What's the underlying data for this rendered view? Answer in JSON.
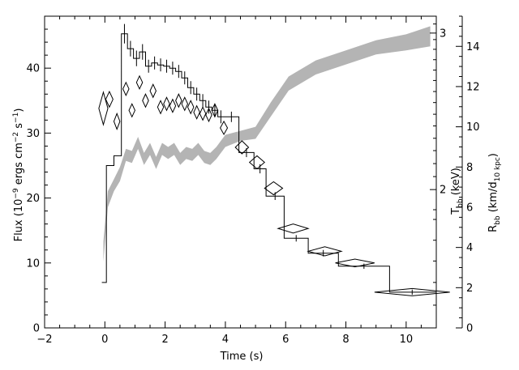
{
  "chart_data": {
    "type": "line",
    "xlabel": "Time (s)",
    "x_ticks": [
      -2,
      0,
      2,
      4,
      6,
      8,
      10
    ],
    "xlim": [
      -2,
      11
    ],
    "ylabel_left": "Flux (10⁻⁹ ergs cm⁻² s⁻¹)",
    "ylim_left": [
      0,
      48
    ],
    "y_ticks_left": [
      0,
      10,
      20,
      30,
      40
    ],
    "ylabel_right_inner": "T_bb (keV)",
    "y_ticks_right_inner": [
      {
        "label": "2",
        "flux": 21.3
      },
      {
        "label": "3",
        "flux": 45.4
      }
    ],
    "ylabel_right_outer": "R_bb (km/d_10 kpc)",
    "ylim_right_outer": [
      0,
      15.5
    ],
    "y_ticks_right_outer": [
      0,
      2,
      4,
      6,
      8,
      10,
      12,
      14
    ],
    "series": [
      {
        "style": "histogram",
        "bins": [
          [
            -0.1,
            0.05,
            7.0
          ],
          [
            0.05,
            0.3,
            25.0
          ],
          [
            0.3,
            0.55,
            26.5
          ],
          [
            0.55,
            0.75,
            45.3
          ],
          [
            0.75,
            0.95,
            43.0
          ],
          [
            0.95,
            1.15,
            41.5
          ],
          [
            1.15,
            1.35,
            42.5
          ],
          [
            1.35,
            1.55,
            40.3
          ],
          [
            1.55,
            1.75,
            40.8
          ],
          [
            1.75,
            1.95,
            40.5
          ],
          [
            1.95,
            2.15,
            40.3
          ],
          [
            2.15,
            2.35,
            40.0
          ],
          [
            2.35,
            2.55,
            39.5
          ],
          [
            2.55,
            2.75,
            38.5
          ],
          [
            2.75,
            2.95,
            37.0
          ],
          [
            2.95,
            3.15,
            36.0
          ],
          [
            3.15,
            3.35,
            35.0
          ],
          [
            3.35,
            3.55,
            34.0
          ],
          [
            3.55,
            3.75,
            33.5
          ],
          [
            3.75,
            3.95,
            32.5
          ],
          [
            3.95,
            4.45,
            32.5
          ],
          [
            4.45,
            4.95,
            27.0
          ],
          [
            4.95,
            5.35,
            24.5
          ],
          [
            5.35,
            5.95,
            20.3
          ],
          [
            5.95,
            6.75,
            13.8
          ],
          [
            6.75,
            7.75,
            11.5
          ],
          [
            7.75,
            9.45,
            9.5
          ],
          [
            9.45,
            11.0,
            5.5
          ]
        ],
        "error_bars": [
          [
            0.65,
            45.3,
            1.5
          ],
          [
            0.85,
            43.0,
            1.2
          ],
          [
            1.05,
            41.5,
            1.2
          ],
          [
            1.25,
            42.5,
            1.2
          ],
          [
            1.45,
            40.3,
            1.0
          ],
          [
            1.65,
            40.8,
            1.0
          ],
          [
            1.85,
            40.5,
            1.0
          ],
          [
            2.05,
            40.3,
            1.0
          ],
          [
            2.25,
            40.0,
            1.0
          ],
          [
            2.45,
            39.5,
            1.0
          ],
          [
            2.65,
            38.5,
            1.0
          ],
          [
            2.85,
            37.0,
            1.0
          ],
          [
            3.05,
            36.0,
            1.0
          ],
          [
            3.25,
            35.0,
            1.0
          ],
          [
            3.45,
            34.0,
            1.0
          ],
          [
            3.65,
            33.5,
            1.0
          ],
          [
            3.85,
            32.5,
            1.0
          ],
          [
            4.2,
            32.5,
            0.8
          ],
          [
            4.7,
            27.0,
            0.7
          ],
          [
            5.15,
            24.5,
            0.7
          ],
          [
            5.65,
            20.3,
            0.6
          ],
          [
            6.35,
            13.8,
            0.5
          ],
          [
            7.25,
            11.5,
            0.5
          ],
          [
            8.6,
            9.5,
            0.4
          ],
          [
            10.2,
            5.5,
            0.4
          ]
        ]
      },
      {
        "style": "diamonds",
        "axis": "T_bb (keV)",
        "points": [
          [
            -0.05,
            33.8,
            0.15,
            2.5
          ],
          [
            0.15,
            35.2,
            0.12,
            1.2
          ],
          [
            0.4,
            31.8,
            0.1,
            1.2
          ],
          [
            0.7,
            36.8,
            0.1,
            1.0
          ],
          [
            0.9,
            33.5,
            0.1,
            1.0
          ],
          [
            1.15,
            37.8,
            0.1,
            1.0
          ],
          [
            1.35,
            35.0,
            0.1,
            1.0
          ],
          [
            1.6,
            36.5,
            0.1,
            1.0
          ],
          [
            1.85,
            34.0,
            0.1,
            1.0
          ],
          [
            2.05,
            34.5,
            0.1,
            1.0
          ],
          [
            2.25,
            34.2,
            0.1,
            1.0
          ],
          [
            2.45,
            35.0,
            0.1,
            1.0
          ],
          [
            2.65,
            34.5,
            0.1,
            1.0
          ],
          [
            2.85,
            34.0,
            0.1,
            1.0
          ],
          [
            3.05,
            33.2,
            0.1,
            1.0
          ],
          [
            3.25,
            33.0,
            0.1,
            1.0
          ],
          [
            3.45,
            32.8,
            0.1,
            1.0
          ],
          [
            3.65,
            33.5,
            0.1,
            1.0
          ],
          [
            3.95,
            30.8,
            0.12,
            1.0
          ],
          [
            4.55,
            27.8,
            0.22,
            1.0
          ],
          [
            5.05,
            25.5,
            0.25,
            1.0
          ],
          [
            5.6,
            21.5,
            0.3,
            1.0
          ],
          [
            6.25,
            15.3,
            0.5,
            0.7
          ],
          [
            7.3,
            11.8,
            0.55,
            0.7
          ],
          [
            8.3,
            10.0,
            0.65,
            0.6
          ],
          [
            10.2,
            5.5,
            1.25,
            0.5
          ]
        ]
      },
      {
        "style": "band",
        "axis": "R_bb (km/d_10 kpc)",
        "points": [
          [
            -0.05,
            3.3,
            4.3
          ],
          [
            0.1,
            6.0,
            6.8
          ],
          [
            0.3,
            6.8,
            7.4
          ],
          [
            0.5,
            7.3,
            8.0
          ],
          [
            0.7,
            8.3,
            8.9
          ],
          [
            0.9,
            8.2,
            8.8
          ],
          [
            1.1,
            8.9,
            9.5
          ],
          [
            1.3,
            8.1,
            8.7
          ],
          [
            1.5,
            8.6,
            9.2
          ],
          [
            1.7,
            7.9,
            8.5
          ],
          [
            1.9,
            8.6,
            9.2
          ],
          [
            2.1,
            8.4,
            9.0
          ],
          [
            2.3,
            8.6,
            9.2
          ],
          [
            2.5,
            8.1,
            8.7
          ],
          [
            2.7,
            8.4,
            9.0
          ],
          [
            2.9,
            8.3,
            8.9
          ],
          [
            3.1,
            8.6,
            9.2
          ],
          [
            3.3,
            8.2,
            8.8
          ],
          [
            3.5,
            8.1,
            8.7
          ],
          [
            3.7,
            8.4,
            9.0
          ],
          [
            4.0,
            9.0,
            9.6
          ],
          [
            4.5,
            9.3,
            9.8
          ],
          [
            5.0,
            9.4,
            10.0
          ],
          [
            5.5,
            10.5,
            11.2
          ],
          [
            6.1,
            11.8,
            12.5
          ],
          [
            7.0,
            12.6,
            13.3
          ],
          [
            8.0,
            13.1,
            13.8
          ],
          [
            9.0,
            13.6,
            14.3
          ],
          [
            10.0,
            13.8,
            14.6
          ],
          [
            10.8,
            14.0,
            15.0
          ]
        ]
      }
    ]
  }
}
